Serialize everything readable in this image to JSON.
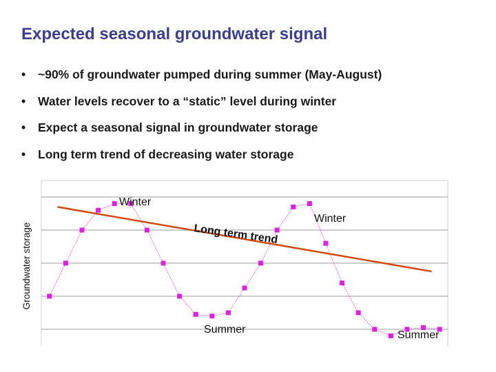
{
  "slide": {
    "title": "Expected seasonal groundwater signal",
    "bullets": [
      "~90% of groundwater pumped during summer (May-August)",
      "Water levels recover to a “static” level during winter",
      "Expect a seasonal signal in groundwater storage",
      "Long term trend of decreasing water storage"
    ]
  },
  "colors": {
    "title": "#3d3d8f",
    "series": "#e020e0",
    "trend": "#d04a10",
    "grid": "#9a9a9a"
  },
  "chart_data": {
    "type": "line",
    "ylabel": "Groundwater storage",
    "xlabel": "",
    "grid": true,
    "legend": "none",
    "x": [
      1,
      2,
      3,
      4,
      5,
      6,
      7,
      8,
      9,
      10,
      11,
      12,
      13,
      14,
      15,
      16,
      17,
      18,
      19,
      20,
      21,
      22,
      23,
      24,
      25
    ],
    "series": [
      {
        "values": [
          1.0,
          2.0,
          3.0,
          3.6,
          3.8,
          3.8,
          3.0,
          2.0,
          1.0,
          0.45,
          0.4,
          0.5,
          1.25,
          2.0,
          3.0,
          3.7,
          3.8,
          2.6,
          1.4,
          0.5,
          0.0,
          -0.2,
          0.0,
          0.05,
          0.0
        ]
      }
    ],
    "trend_line": {
      "x": [
        1.5,
        24.5
      ],
      "y": [
        3.7,
        1.75
      ]
    },
    "annotations": [
      "Winter",
      "Winter",
      "Summer",
      "Summer",
      "Long term trend"
    ],
    "ylim": [
      -0.5,
      4.5
    ]
  }
}
